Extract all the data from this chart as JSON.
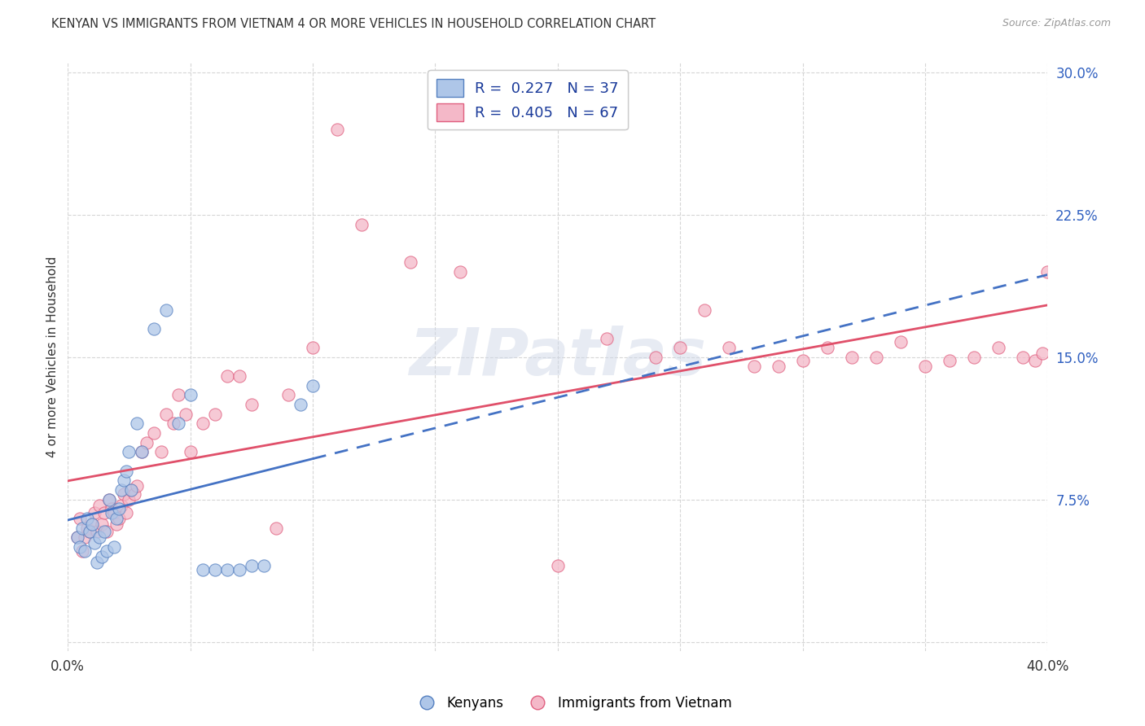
{
  "title": "KENYAN VS IMMIGRANTS FROM VIETNAM 4 OR MORE VEHICLES IN HOUSEHOLD CORRELATION CHART",
  "source": "Source: ZipAtlas.com",
  "ylabel": "4 or more Vehicles in Household",
  "xlim": [
    0.0,
    0.4
  ],
  "ylim": [
    -0.005,
    0.305
  ],
  "xticks": [
    0.0,
    0.05,
    0.1,
    0.15,
    0.2,
    0.25,
    0.3,
    0.35,
    0.4
  ],
  "yticks": [
    0.0,
    0.075,
    0.15,
    0.225,
    0.3
  ],
  "legend_blue_label": "R =  0.227   N = 37",
  "legend_pink_label": "R =  0.405   N = 67",
  "legend_bottom_blue": "Kenyans",
  "legend_bottom_pink": "Immigrants from Vietnam",
  "blue_fill": "#aec6e8",
  "pink_fill": "#f4b8c8",
  "blue_edge": "#5580c0",
  "pink_edge": "#e06080",
  "blue_line": "#4472c4",
  "pink_line": "#e0506a",
  "watermark": "ZIPatlas",
  "kenyan_x": [
    0.004,
    0.005,
    0.006,
    0.007,
    0.008,
    0.009,
    0.01,
    0.011,
    0.012,
    0.013,
    0.014,
    0.015,
    0.016,
    0.017,
    0.018,
    0.019,
    0.02,
    0.021,
    0.022,
    0.023,
    0.024,
    0.025,
    0.026,
    0.028,
    0.03,
    0.035,
    0.04,
    0.045,
    0.05,
    0.055,
    0.06,
    0.065,
    0.07,
    0.075,
    0.08,
    0.095,
    0.1
  ],
  "kenyan_y": [
    0.055,
    0.05,
    0.06,
    0.048,
    0.065,
    0.058,
    0.062,
    0.052,
    0.042,
    0.055,
    0.045,
    0.058,
    0.048,
    0.075,
    0.068,
    0.05,
    0.065,
    0.07,
    0.08,
    0.085,
    0.09,
    0.1,
    0.08,
    0.115,
    0.1,
    0.165,
    0.175,
    0.115,
    0.13,
    0.038,
    0.038,
    0.038,
    0.038,
    0.04,
    0.04,
    0.125,
    0.135
  ],
  "vietnam_x": [
    0.004,
    0.005,
    0.006,
    0.007,
    0.008,
    0.009,
    0.01,
    0.011,
    0.012,
    0.013,
    0.014,
    0.015,
    0.016,
    0.017,
    0.018,
    0.019,
    0.02,
    0.021,
    0.022,
    0.023,
    0.024,
    0.025,
    0.026,
    0.027,
    0.028,
    0.03,
    0.032,
    0.035,
    0.038,
    0.04,
    0.043,
    0.045,
    0.048,
    0.05,
    0.055,
    0.06,
    0.065,
    0.07,
    0.075,
    0.085,
    0.09,
    0.1,
    0.11,
    0.12,
    0.14,
    0.16,
    0.2,
    0.22,
    0.24,
    0.25,
    0.26,
    0.27,
    0.28,
    0.29,
    0.3,
    0.31,
    0.32,
    0.33,
    0.34,
    0.35,
    0.36,
    0.37,
    0.38,
    0.39,
    0.395,
    0.398,
    0.4
  ],
  "vietnam_y": [
    0.055,
    0.065,
    0.048,
    0.055,
    0.06,
    0.058,
    0.062,
    0.068,
    0.058,
    0.072,
    0.062,
    0.068,
    0.058,
    0.075,
    0.07,
    0.068,
    0.062,
    0.065,
    0.072,
    0.078,
    0.068,
    0.075,
    0.08,
    0.078,
    0.082,
    0.1,
    0.105,
    0.11,
    0.1,
    0.12,
    0.115,
    0.13,
    0.12,
    0.1,
    0.115,
    0.12,
    0.14,
    0.14,
    0.125,
    0.06,
    0.13,
    0.155,
    0.27,
    0.22,
    0.2,
    0.195,
    0.04,
    0.16,
    0.15,
    0.155,
    0.175,
    0.155,
    0.145,
    0.145,
    0.148,
    0.155,
    0.15,
    0.15,
    0.158,
    0.145,
    0.148,
    0.15,
    0.155,
    0.15,
    0.148,
    0.152,
    0.195
  ]
}
